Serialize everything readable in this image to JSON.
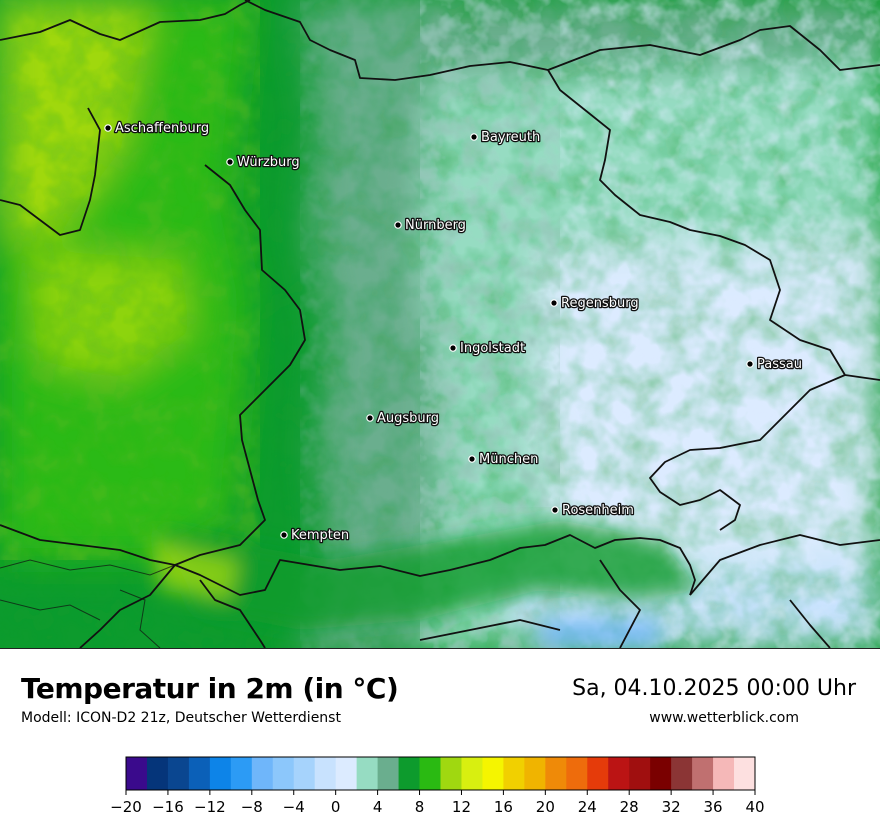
{
  "map": {
    "cities": [
      {
        "name": "Aschaffenburg"
      },
      {
        "name": "Würzburg"
      },
      {
        "name": "Bayreuth"
      },
      {
        "name": "Nürnberg"
      },
      {
        "name": "Regensburg"
      },
      {
        "name": "Ingolstadt"
      },
      {
        "name": "Passau"
      },
      {
        "name": "Augsburg"
      },
      {
        "name": "München"
      },
      {
        "name": "Rosenheim"
      },
      {
        "name": "Kempten"
      }
    ]
  },
  "footer": {
    "title": "Temperatur in 2m (in °C)",
    "subtitle": "Modell: ICON-D2 21z, Deutscher Wetterdienst",
    "datetime": "Sa, 04.10.2025 00:00 Uhr",
    "website": "www.wetterblick.com"
  },
  "legend": {
    "ticks": [
      "−20",
      "−16",
      "−12",
      "−8",
      "−4",
      "0",
      "4",
      "8",
      "12",
      "16",
      "20",
      "24",
      "28",
      "32",
      "36",
      "40"
    ],
    "colors": [
      "#3a0a8c",
      "#05357a",
      "#0a4690",
      "#0b60b8",
      "#0d84e8",
      "#2c9bf5",
      "#6fb6fa",
      "#8cc7fb",
      "#a6d3fc",
      "#c8e2fe",
      "#dcebff",
      "#96dcc2",
      "#6aae8e",
      "#0d9b2d",
      "#2aba12",
      "#a0d810",
      "#d8ef10",
      "#f5f500",
      "#f1d000",
      "#f0b400",
      "#ef8a08",
      "#ee6c0c",
      "#e53b0a",
      "#bb1414",
      "#a00f0f",
      "#7a0000",
      "#8b3535",
      "#c07070",
      "#f5b8b8",
      "#fde0e0"
    ]
  }
}
